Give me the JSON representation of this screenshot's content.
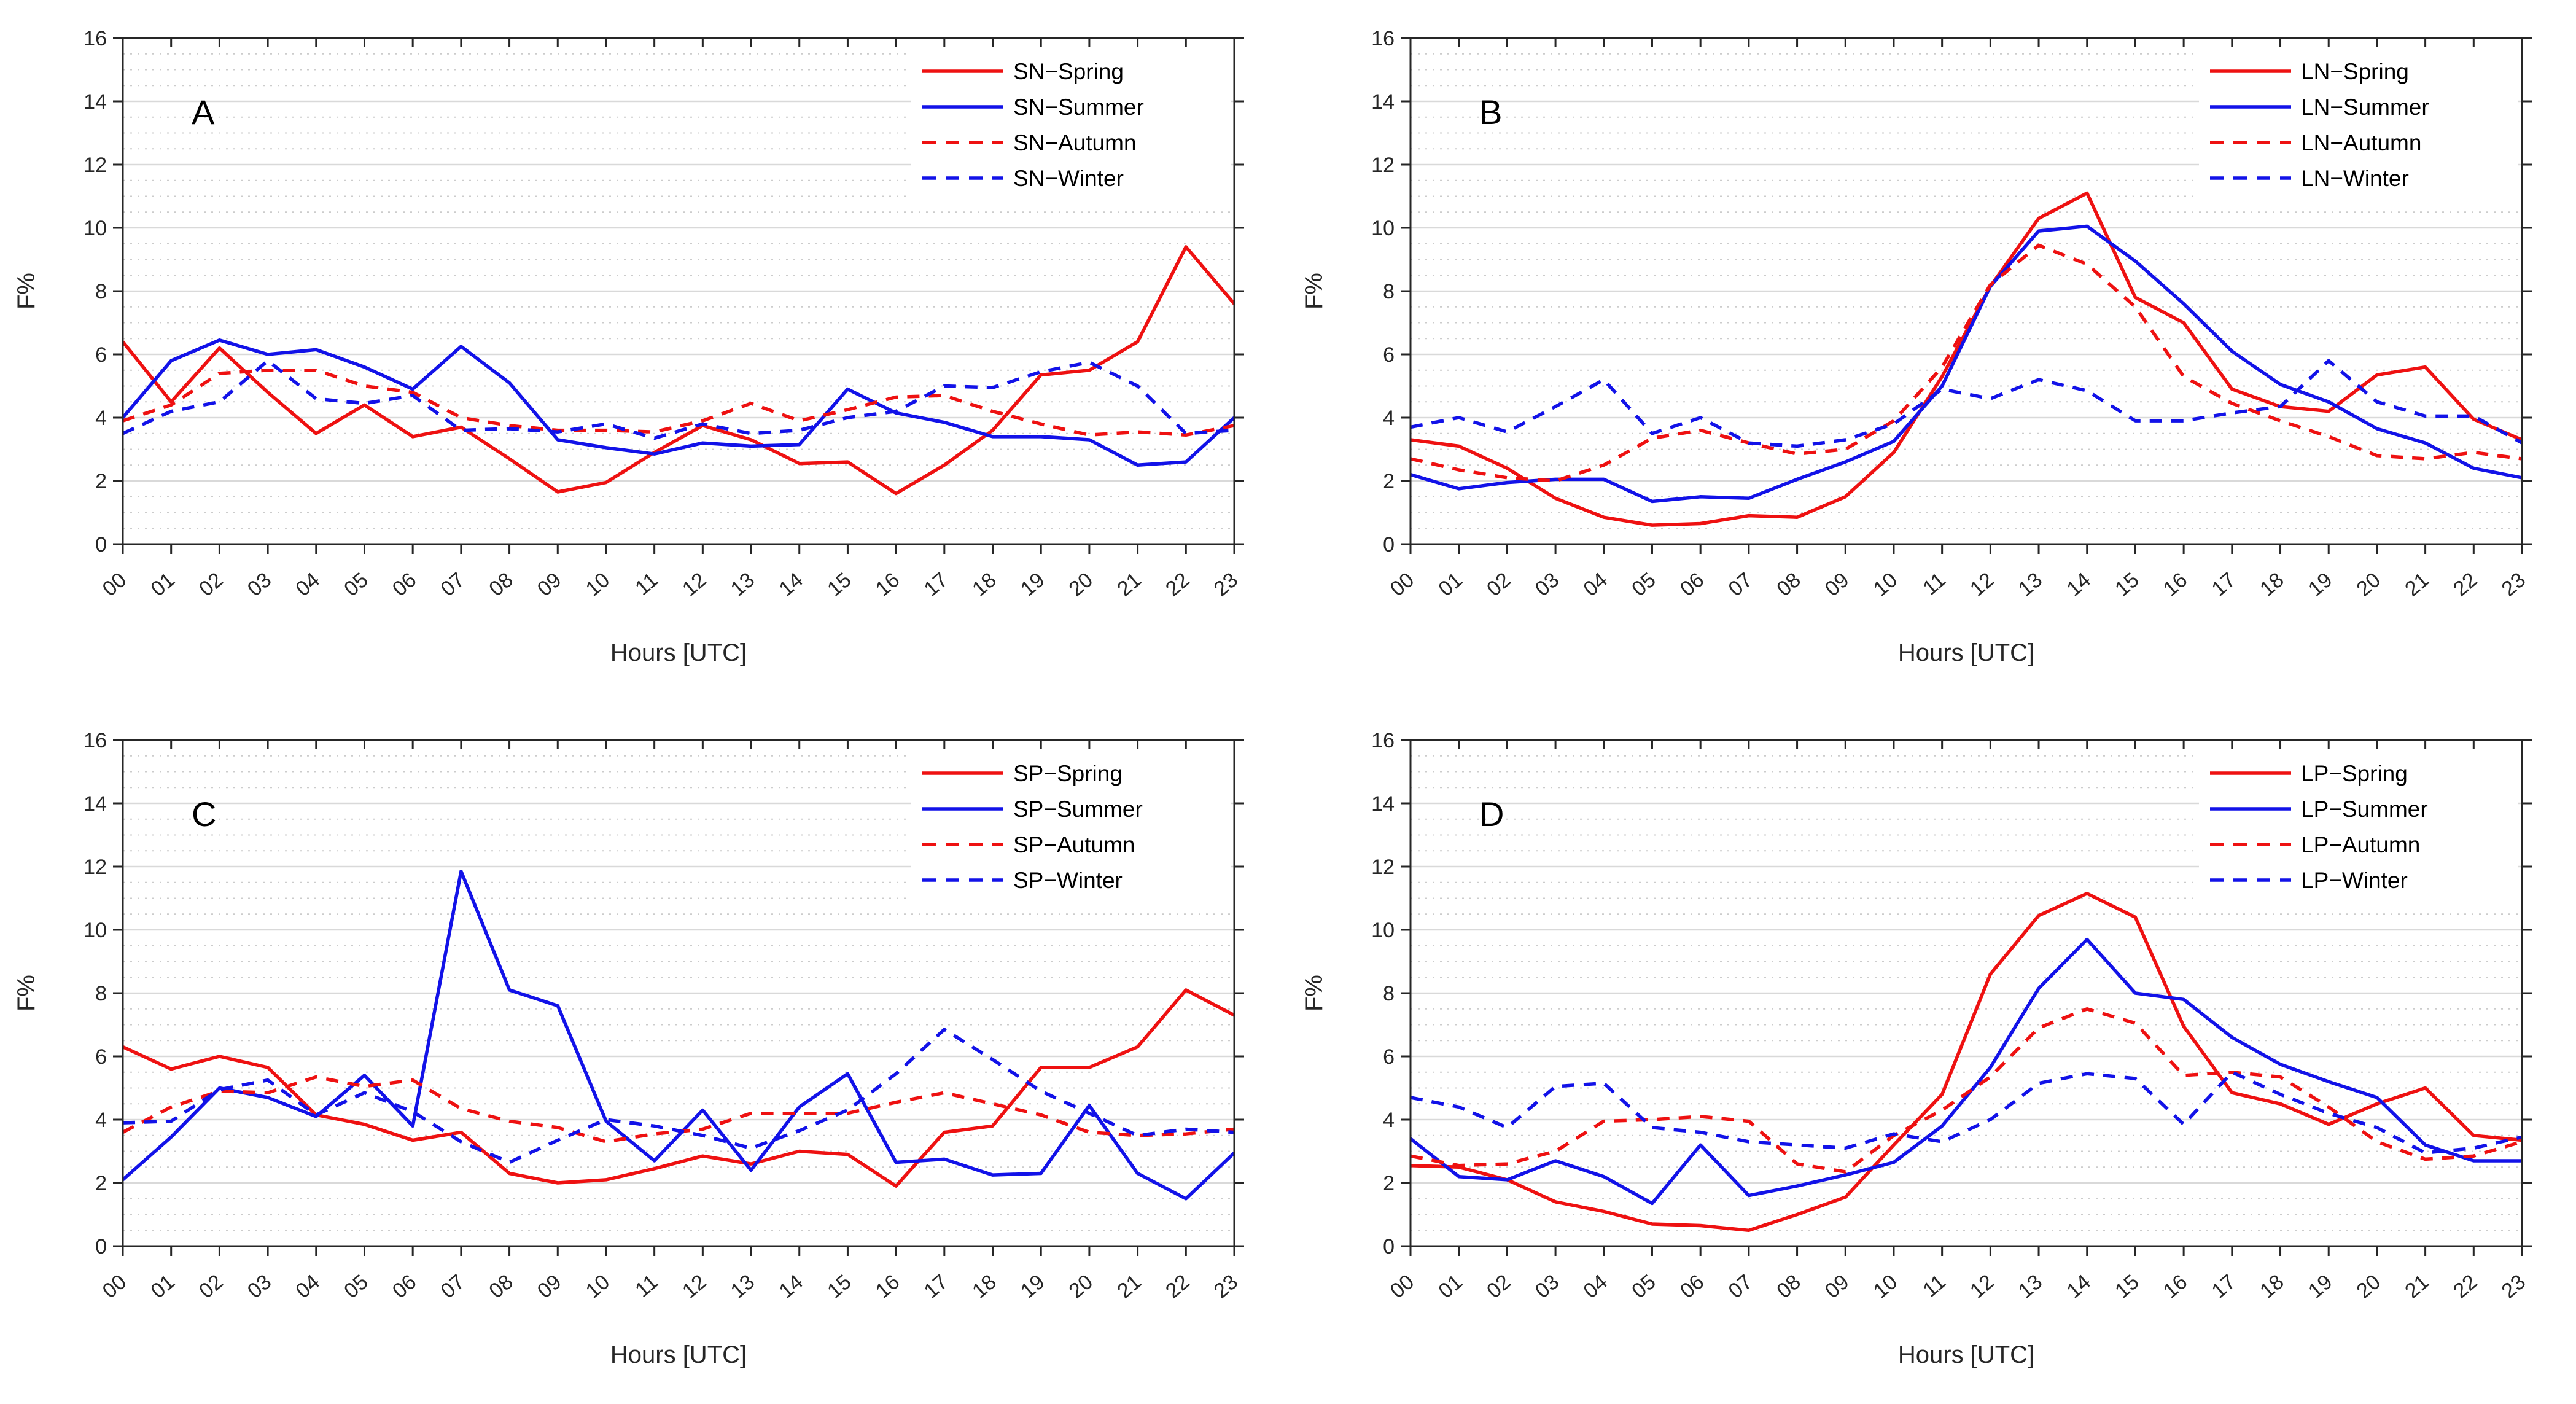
{
  "page": {
    "background": "#ffffff",
    "axis_color": "#262626",
    "major_grid_color": "#d9d9d9",
    "minor_grid_color": "#cccccc",
    "series_red": "#ee1111",
    "series_blue": "#1212e8"
  },
  "chart_data": [
    {
      "type": "line",
      "panel_letter": "A",
      "xlabel": "Hours [UTC]",
      "ylabel": "F%",
      "ylim": [
        0,
        16
      ],
      "ytick_step": 2,
      "minor_grid_step": 0.5,
      "grid": "horizontal-only",
      "legend_position": "top-right-inside",
      "categories": [
        "00",
        "01",
        "02",
        "03",
        "04",
        "05",
        "06",
        "07",
        "08",
        "09",
        "10",
        "11",
        "12",
        "13",
        "14",
        "15",
        "16",
        "17",
        "18",
        "19",
        "20",
        "21",
        "22",
        "23"
      ],
      "series": [
        {
          "name": "SN−Spring",
          "color": "#ee1111",
          "dash": "solid",
          "values": [
            6.4,
            4.5,
            6.2,
            4.8,
            3.5,
            4.4,
            3.4,
            3.7,
            2.7,
            1.65,
            1.95,
            2.9,
            3.75,
            3.3,
            2.55,
            2.6,
            1.6,
            2.5,
            3.6,
            5.35,
            5.5,
            6.4,
            9.4,
            7.6
          ]
        },
        {
          "name": "SN−Summer",
          "color": "#1212e8",
          "dash": "solid",
          "values": [
            4.0,
            5.8,
            6.45,
            6.0,
            6.15,
            5.6,
            4.9,
            6.25,
            5.1,
            3.3,
            3.05,
            2.85,
            3.2,
            3.1,
            3.15,
            4.9,
            4.15,
            3.85,
            3.4,
            3.4,
            3.3,
            2.5,
            2.6,
            4.0
          ]
        },
        {
          "name": "SN−Autumn",
          "color": "#ee1111",
          "dash": "dashed",
          "values": [
            3.9,
            4.4,
            5.4,
            5.5,
            5.5,
            5.0,
            4.8,
            4.0,
            3.75,
            3.6,
            3.6,
            3.55,
            3.9,
            4.45,
            3.9,
            4.25,
            4.65,
            4.7,
            4.2,
            3.8,
            3.45,
            3.55,
            3.45,
            3.75
          ]
        },
        {
          "name": "SN−Winter",
          "color": "#1212e8",
          "dash": "dashed",
          "values": [
            3.5,
            4.2,
            4.5,
            5.8,
            4.6,
            4.45,
            4.7,
            3.6,
            3.65,
            3.55,
            3.8,
            3.35,
            3.8,
            3.5,
            3.6,
            4.0,
            4.2,
            5.0,
            4.95,
            5.45,
            5.75,
            5.0,
            3.5,
            3.6
          ]
        }
      ]
    },
    {
      "type": "line",
      "panel_letter": "B",
      "xlabel": "Hours [UTC]",
      "ylabel": "F%",
      "ylim": [
        0,
        16
      ],
      "ytick_step": 2,
      "minor_grid_step": 0.5,
      "grid": "horizontal-only",
      "legend_position": "top-right-inside",
      "categories": [
        "00",
        "01",
        "02",
        "03",
        "04",
        "05",
        "06",
        "07",
        "08",
        "09",
        "10",
        "11",
        "12",
        "13",
        "14",
        "15",
        "16",
        "17",
        "18",
        "19",
        "20",
        "21",
        "22",
        "23"
      ],
      "series": [
        {
          "name": "LN−Spring",
          "color": "#ee1111",
          "dash": "solid",
          "values": [
            3.3,
            3.1,
            2.4,
            1.45,
            0.85,
            0.6,
            0.65,
            0.9,
            0.85,
            1.5,
            2.9,
            5.3,
            8.15,
            10.3,
            11.1,
            7.8,
            7.0,
            4.9,
            4.35,
            4.2,
            5.35,
            5.6,
            3.95,
            3.3
          ]
        },
        {
          "name": "LN−Summer",
          "color": "#1212e8",
          "dash": "solid",
          "values": [
            2.2,
            1.75,
            1.95,
            2.05,
            2.05,
            1.35,
            1.5,
            1.45,
            2.05,
            2.6,
            3.25,
            5.0,
            8.15,
            9.9,
            10.05,
            8.95,
            7.6,
            6.1,
            5.05,
            4.5,
            3.65,
            3.2,
            2.4,
            2.1
          ]
        },
        {
          "name": "LN−Autumn",
          "color": "#ee1111",
          "dash": "dashed",
          "values": [
            2.7,
            2.35,
            2.1,
            2.0,
            2.5,
            3.35,
            3.6,
            3.2,
            2.85,
            3.0,
            3.9,
            5.6,
            8.2,
            9.45,
            8.85,
            7.5,
            5.3,
            4.45,
            3.9,
            3.4,
            2.8,
            2.7,
            2.9,
            2.7
          ]
        },
        {
          "name": "LN−Winter",
          "color": "#1212e8",
          "dash": "dashed",
          "values": [
            3.7,
            4.0,
            3.55,
            4.35,
            5.2,
            3.5,
            4.0,
            3.2,
            3.1,
            3.3,
            3.8,
            4.9,
            4.6,
            5.2,
            4.85,
            3.9,
            3.9,
            4.15,
            4.35,
            5.8,
            4.5,
            4.05,
            4.05,
            3.2
          ]
        }
      ]
    },
    {
      "type": "line",
      "panel_letter": "C",
      "xlabel": "Hours [UTC]",
      "ylabel": "F%",
      "ylim": [
        0,
        16
      ],
      "ytick_step": 2,
      "minor_grid_step": 0.5,
      "grid": "horizontal-only",
      "legend_position": "top-right-inside",
      "categories": [
        "00",
        "01",
        "02",
        "03",
        "04",
        "05",
        "06",
        "07",
        "08",
        "09",
        "10",
        "11",
        "12",
        "13",
        "14",
        "15",
        "16",
        "17",
        "18",
        "19",
        "20",
        "21",
        "22",
        "23"
      ],
      "series": [
        {
          "name": "SP−Spring",
          "color": "#ee1111",
          "dash": "solid",
          "values": [
            6.3,
            5.6,
            6.0,
            5.65,
            4.15,
            3.85,
            3.35,
            3.6,
            2.3,
            2.0,
            2.1,
            2.45,
            2.85,
            2.6,
            3.0,
            2.9,
            1.9,
            3.6,
            3.8,
            5.65,
            5.65,
            6.3,
            8.1,
            7.3
          ]
        },
        {
          "name": "SP−Summer",
          "color": "#1212e8",
          "dash": "solid",
          "values": [
            2.1,
            3.45,
            5.0,
            4.7,
            4.1,
            5.4,
            3.8,
            11.85,
            8.1,
            7.6,
            3.95,
            2.7,
            4.3,
            2.4,
            4.4,
            5.45,
            2.65,
            2.75,
            2.25,
            2.3,
            4.45,
            2.3,
            1.5,
            2.95
          ]
        },
        {
          "name": "SP−Autumn",
          "color": "#ee1111",
          "dash": "dashed",
          "values": [
            3.6,
            4.4,
            4.9,
            4.85,
            5.35,
            5.05,
            5.25,
            4.35,
            3.95,
            3.75,
            3.3,
            3.55,
            3.7,
            4.2,
            4.2,
            4.2,
            4.55,
            4.85,
            4.5,
            4.15,
            3.6,
            3.5,
            3.55,
            3.7
          ]
        },
        {
          "name": "SP−Winter",
          "color": "#1212e8",
          "dash": "dashed",
          "values": [
            3.9,
            3.95,
            4.95,
            5.25,
            4.15,
            4.85,
            4.25,
            3.3,
            2.65,
            3.35,
            4.0,
            3.8,
            3.5,
            3.1,
            3.65,
            4.3,
            5.45,
            6.85,
            5.9,
            4.9,
            4.2,
            3.5,
            3.7,
            3.6
          ]
        }
      ]
    },
    {
      "type": "line",
      "panel_letter": "D",
      "xlabel": "Hours [UTC]",
      "ylabel": "F%",
      "ylim": [
        0,
        16
      ],
      "ytick_step": 2,
      "minor_grid_step": 0.5,
      "grid": "horizontal-only",
      "legend_position": "top-right-inside",
      "categories": [
        "00",
        "01",
        "02",
        "03",
        "04",
        "05",
        "06",
        "07",
        "08",
        "09",
        "10",
        "11",
        "12",
        "13",
        "14",
        "15",
        "16",
        "17",
        "18",
        "19",
        "20",
        "21",
        "22",
        "23"
      ],
      "series": [
        {
          "name": "LP−Spring",
          "color": "#ee1111",
          "dash": "solid",
          "values": [
            2.55,
            2.5,
            2.1,
            1.4,
            1.1,
            0.7,
            0.65,
            0.5,
            1.0,
            1.55,
            3.2,
            4.8,
            8.6,
            10.45,
            11.15,
            10.4,
            6.95,
            4.85,
            4.5,
            3.85,
            4.5,
            5.0,
            3.5,
            3.35
          ]
        },
        {
          "name": "LP−Summer",
          "color": "#1212e8",
          "dash": "solid",
          "values": [
            3.4,
            2.2,
            2.1,
            2.7,
            2.2,
            1.35,
            3.2,
            1.6,
            1.9,
            2.25,
            2.65,
            3.8,
            5.65,
            8.15,
            9.7,
            8.0,
            7.8,
            6.6,
            5.75,
            5.2,
            4.7,
            3.2,
            2.7,
            2.7
          ]
        },
        {
          "name": "LP−Autumn",
          "color": "#ee1111",
          "dash": "dashed",
          "values": [
            2.85,
            2.55,
            2.6,
            3.0,
            3.95,
            4.0,
            4.1,
            3.95,
            2.6,
            2.35,
            3.5,
            4.3,
            5.35,
            6.9,
            7.5,
            7.05,
            5.4,
            5.5,
            5.35,
            4.4,
            3.3,
            2.75,
            2.85,
            3.3
          ]
        },
        {
          "name": "LP−Winter",
          "color": "#1212e8",
          "dash": "dashed",
          "values": [
            4.7,
            4.4,
            3.75,
            5.05,
            5.15,
            3.75,
            3.6,
            3.3,
            3.2,
            3.1,
            3.55,
            3.3,
            4.0,
            5.15,
            5.45,
            5.3,
            3.85,
            5.5,
            4.8,
            4.2,
            3.75,
            2.95,
            3.1,
            3.45
          ]
        }
      ]
    }
  ]
}
